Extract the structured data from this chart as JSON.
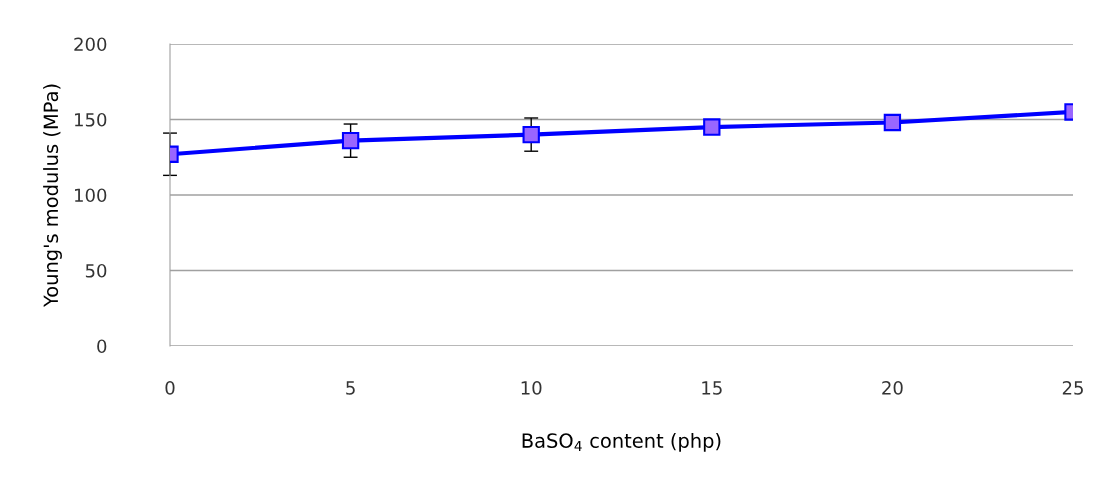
{
  "chart_data": {
    "type": "line",
    "xlabel": "BaSO$_{4}$ content (php)",
    "ylabel": "Young's modulus (MPa)",
    "x": [
      0,
      5,
      10,
      15,
      20,
      25
    ],
    "series": [
      {
        "color": "#0000ff",
        "values": [
          127,
          136,
          140,
          145,
          148,
          155
        ],
        "errors": [
          14,
          11,
          11,
          null,
          null,
          null
        ]
      }
    ],
    "xlim": [
      0,
      25
    ],
    "xticks": [
      0,
      5,
      10,
      15,
      20,
      25
    ],
    "ylim": [
      0,
      200
    ],
    "yticks": [
      0,
      50,
      100,
      150,
      200
    ],
    "grid": "y",
    "marker": "square",
    "line_style": "solid",
    "legend": false
  }
}
